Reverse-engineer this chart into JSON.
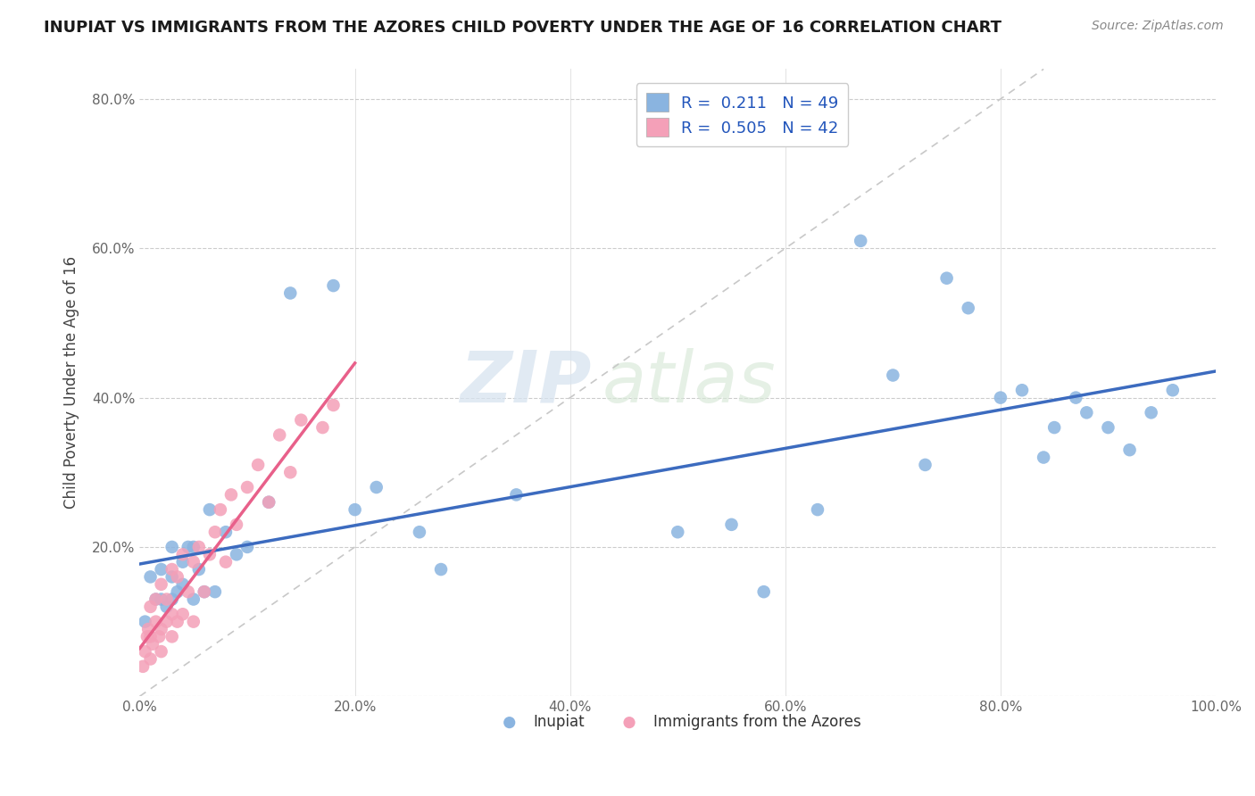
{
  "title": "INUPIAT VS IMMIGRANTS FROM THE AZORES CHILD POVERTY UNDER THE AGE OF 16 CORRELATION CHART",
  "source": "Source: ZipAtlas.com",
  "ylabel": "Child Poverty Under the Age of 16",
  "xlim": [
    0.0,
    1.0
  ],
  "ylim": [
    0.0,
    0.84
  ],
  "xticks": [
    0.0,
    0.2,
    0.4,
    0.6,
    0.8,
    1.0
  ],
  "yticks": [
    0.0,
    0.2,
    0.4,
    0.6,
    0.8
  ],
  "xticklabels": [
    "0.0%",
    "20.0%",
    "40.0%",
    "60.0%",
    "80.0%",
    "100.0%"
  ],
  "yticklabels": [
    "",
    "20.0%",
    "40.0%",
    "60.0%",
    "80.0%"
  ],
  "inupiat_color": "#8ab4e0",
  "azores_color": "#f4a0b8",
  "inupiat_line_color": "#3c6bbf",
  "azores_line_color": "#e8608a",
  "R_inupiat": 0.211,
  "N_inupiat": 49,
  "R_azores": 0.505,
  "N_azores": 42,
  "inupiat_x": [
    0.005,
    0.01,
    0.015,
    0.02,
    0.02,
    0.025,
    0.03,
    0.03,
    0.03,
    0.035,
    0.04,
    0.04,
    0.045,
    0.05,
    0.05,
    0.055,
    0.06,
    0.065,
    0.07,
    0.08,
    0.09,
    0.1,
    0.12,
    0.14,
    0.18,
    0.2,
    0.22,
    0.26,
    0.28,
    0.35,
    0.5,
    0.55,
    0.58,
    0.63,
    0.67,
    0.7,
    0.73,
    0.75,
    0.77,
    0.8,
    0.82,
    0.84,
    0.85,
    0.87,
    0.88,
    0.9,
    0.92,
    0.94,
    0.96
  ],
  "inupiat_y": [
    0.1,
    0.16,
    0.13,
    0.13,
    0.17,
    0.12,
    0.13,
    0.16,
    0.2,
    0.14,
    0.15,
    0.18,
    0.2,
    0.13,
    0.2,
    0.17,
    0.14,
    0.25,
    0.14,
    0.22,
    0.19,
    0.2,
    0.26,
    0.54,
    0.55,
    0.25,
    0.28,
    0.22,
    0.17,
    0.27,
    0.22,
    0.23,
    0.14,
    0.25,
    0.61,
    0.43,
    0.31,
    0.56,
    0.52,
    0.4,
    0.41,
    0.32,
    0.36,
    0.4,
    0.38,
    0.36,
    0.33,
    0.38,
    0.41
  ],
  "azores_x": [
    0.003,
    0.005,
    0.007,
    0.008,
    0.01,
    0.01,
    0.01,
    0.012,
    0.015,
    0.015,
    0.018,
    0.02,
    0.02,
    0.02,
    0.025,
    0.025,
    0.03,
    0.03,
    0.03,
    0.035,
    0.035,
    0.04,
    0.04,
    0.045,
    0.05,
    0.05,
    0.055,
    0.06,
    0.065,
    0.07,
    0.075,
    0.08,
    0.085,
    0.09,
    0.1,
    0.11,
    0.12,
    0.13,
    0.14,
    0.15,
    0.17,
    0.18
  ],
  "azores_y": [
    0.04,
    0.06,
    0.08,
    0.09,
    0.05,
    0.08,
    0.12,
    0.07,
    0.1,
    0.13,
    0.08,
    0.06,
    0.09,
    0.15,
    0.1,
    0.13,
    0.08,
    0.11,
    0.17,
    0.1,
    0.16,
    0.11,
    0.19,
    0.14,
    0.1,
    0.18,
    0.2,
    0.14,
    0.19,
    0.22,
    0.25,
    0.18,
    0.27,
    0.23,
    0.28,
    0.31,
    0.26,
    0.35,
    0.3,
    0.37,
    0.36,
    0.39
  ]
}
